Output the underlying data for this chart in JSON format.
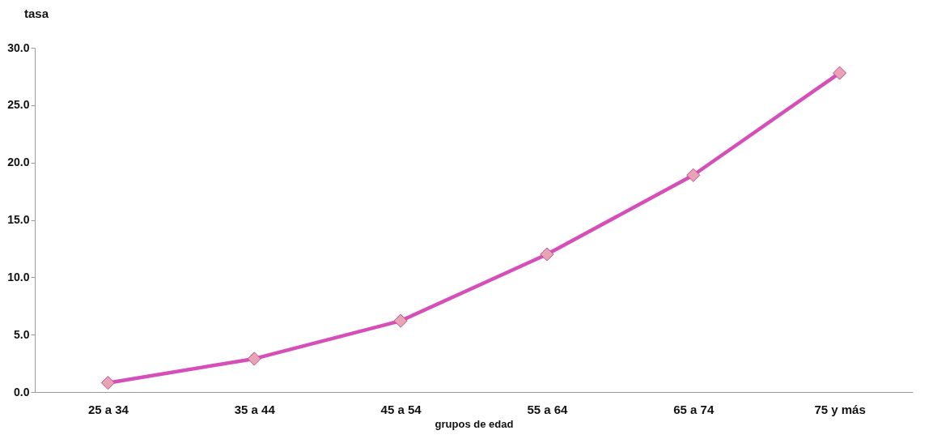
{
  "chart_data": {
    "type": "line",
    "xlabel": "grupos de edad",
    "ylabel": "tasa",
    "categories": [
      "25 a 34",
      "35 a 44",
      "45 a 54",
      "55 a 64",
      "65 a 74",
      "75 y más"
    ],
    "series": [
      {
        "color": "#d64fb8",
        "values": [
          0.8,
          2.9,
          6.2,
          12.0,
          18.9,
          27.8
        ]
      }
    ],
    "ylim": [
      0,
      30
    ],
    "yticks": [
      {
        "value": 0,
        "label": "0.0"
      },
      {
        "value": 5,
        "label": "5.0"
      },
      {
        "value": 10,
        "label": "10.0"
      },
      {
        "value": 15,
        "label": "15.0"
      },
      {
        "value": 20,
        "label": "20.0"
      },
      {
        "value": 25,
        "label": "25.0"
      },
      {
        "value": 30,
        "label": "30.0"
      }
    ],
    "marker": "diamond",
    "grid": false,
    "legend": false
  }
}
